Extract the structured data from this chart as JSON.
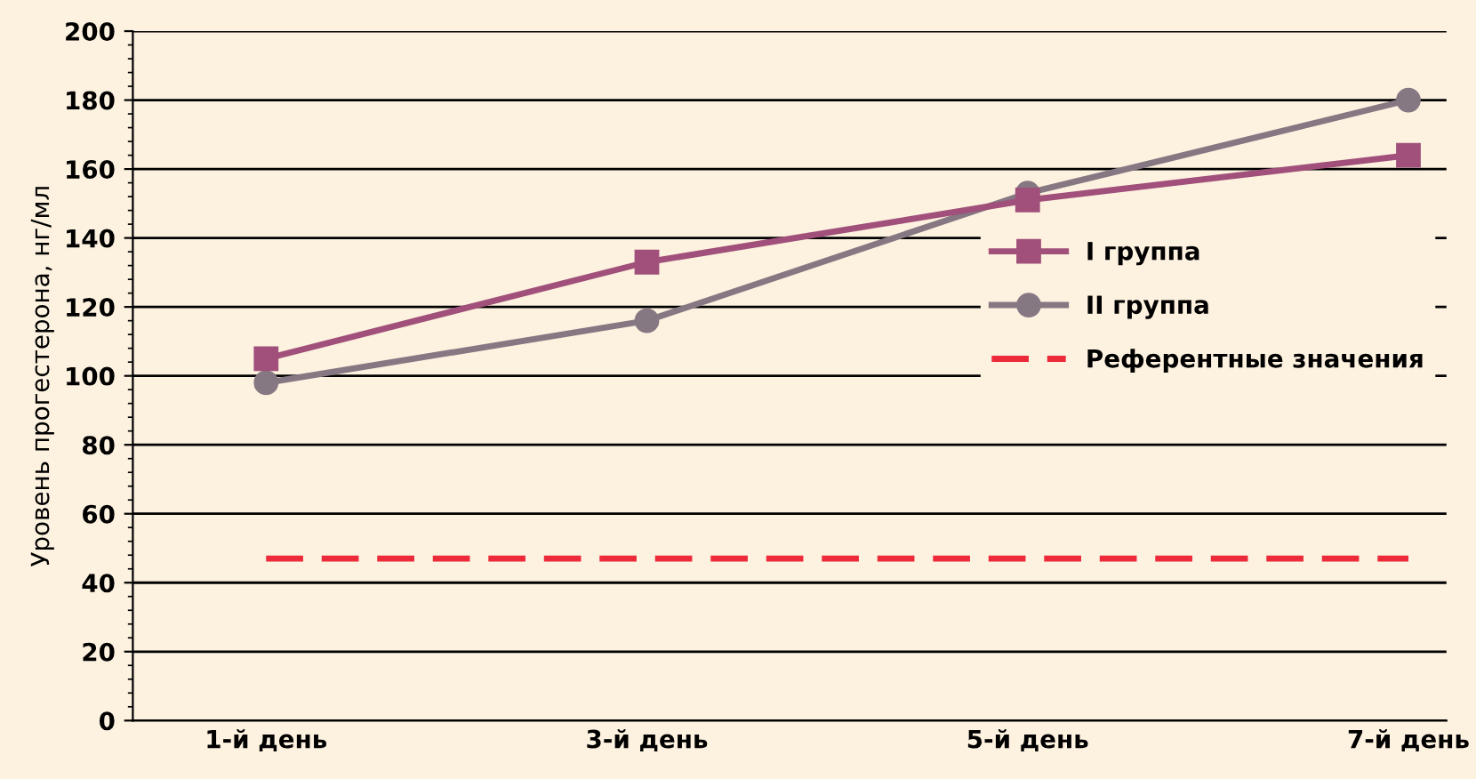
{
  "chart_data": {
    "type": "line",
    "ylabel": "Уровень прогестерона, нг/мл",
    "categories": [
      "1-й день",
      "3-й день",
      "5-й день",
      "7-й день"
    ],
    "series": [
      {
        "name": "I группа",
        "color": "#a0507a",
        "marker": "square",
        "values": [
          105,
          133,
          151,
          164
        ]
      },
      {
        "name": "II группа",
        "color": "#857883",
        "marker": "circle",
        "values": [
          98,
          116,
          153,
          180
        ]
      }
    ],
    "ref_lines": [
      {
        "axis": "y",
        "value": 47,
        "label": "Референтные значения",
        "color": "#ed2a3a",
        "line_style": "dashed"
      }
    ],
    "ylim": [
      0,
      200
    ],
    "yticks": [
      0,
      20,
      40,
      60,
      80,
      100,
      120,
      140,
      160,
      180,
      200
    ],
    "grid": "y",
    "legend": "right",
    "line_style": "solid"
  }
}
